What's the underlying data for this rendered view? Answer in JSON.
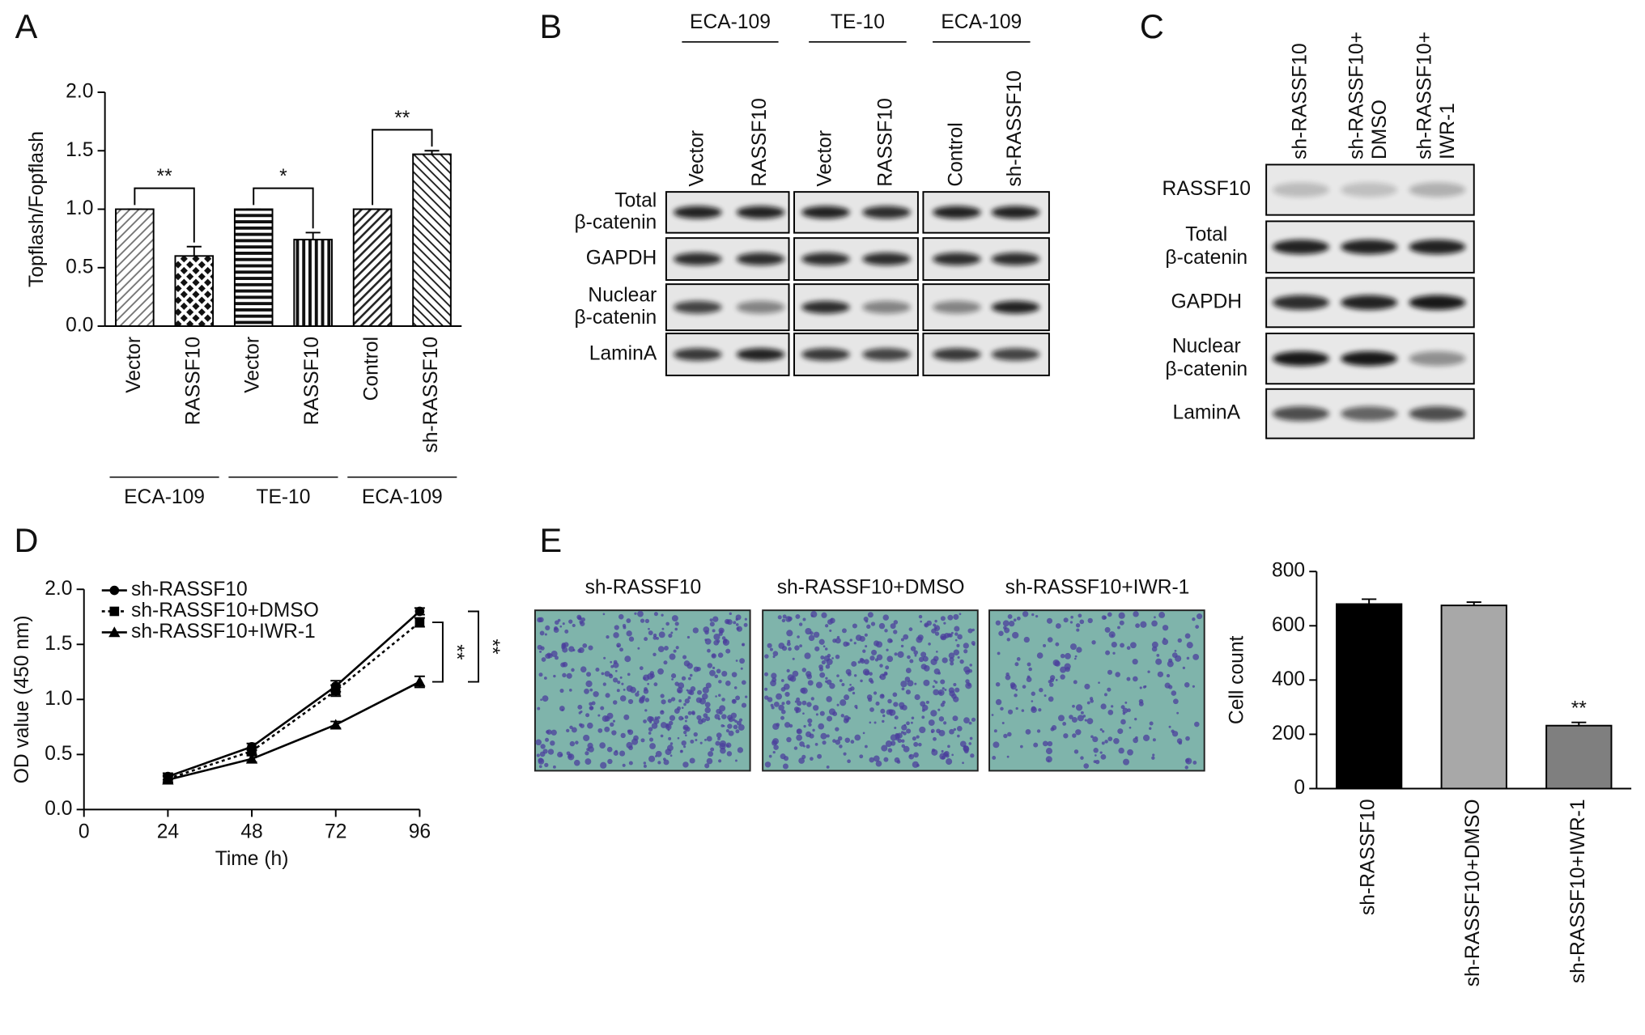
{
  "panel_labels": [
    "A",
    "B",
    "C",
    "D",
    "E"
  ],
  "chart_data": [
    {
      "type": "bar",
      "ylabel": "Topflash/Fopflash",
      "categories": [
        "Vector",
        "RASSF10",
        "Vector",
        "RASSF10",
        "Control",
        "sh-RASSF10"
      ],
      "values": [
        1.0,
        0.6,
        1.0,
        0.74,
        1.0,
        1.47
      ],
      "errors": [
        0,
        0.08,
        0,
        0.06,
        0,
        0.03
      ],
      "groups": [
        "ECA-109",
        "TE-10",
        "ECA-109"
      ],
      "significance": [
        "**",
        "*",
        "**"
      ],
      "ylim": [
        0,
        2
      ],
      "yticks": [
        {
          "value": 0,
          "label": "0.0"
        },
        {
          "value": 0.5,
          "label": "0.5"
        },
        {
          "value": 1,
          "label": "1.0"
        },
        {
          "value": 1.5,
          "label": "1.5"
        },
        {
          "value": 2,
          "label": "2.0"
        }
      ]
    },
    {
      "type": "line",
      "xlabel": "Time (h)",
      "ylabel": "OD value (450 nm)",
      "x": [
        24,
        48,
        72,
        96
      ],
      "xlim": [
        0,
        96
      ],
      "xticks": [
        0,
        24,
        48,
        72,
        96
      ],
      "ylim": [
        0,
        2
      ],
      "yticks": [
        {
          "value": 0,
          "label": "0.0"
        },
        {
          "value": 0.5,
          "label": "0.5"
        },
        {
          "value": 1,
          "label": "1.0"
        },
        {
          "value": 1.5,
          "label": "1.5"
        },
        {
          "value": 2,
          "label": "2.0"
        }
      ],
      "series": [
        {
          "name": "sh-RASSF10",
          "color": "#000000",
          "marker": "circle",
          "dash": "solid",
          "values": [
            0.3,
            0.57,
            1.12,
            1.8
          ],
          "errors": [
            0.03,
            0.03,
            0.05,
            0.03
          ]
        },
        {
          "name": "sh-RASSF10+DMSO",
          "color": "#000000",
          "marker": "square",
          "dash": "dotted",
          "values": [
            0.28,
            0.53,
            1.08,
            1.7
          ],
          "errors": [
            0.03,
            0.03,
            0.05,
            0.04
          ]
        },
        {
          "name": "sh-RASSF10+IWR-1",
          "color": "#000000",
          "marker": "triangle",
          "dash": "solid",
          "values": [
            0.27,
            0.46,
            0.77,
            1.16
          ],
          "errors": [
            0.03,
            0.03,
            0.03,
            0.05
          ]
        }
      ],
      "significance": [
        "**",
        "**"
      ]
    },
    {
      "type": "bar",
      "ylabel": "Cell count",
      "categories": [
        "sh-RASSF10",
        "sh-RASSF10+DMSO",
        "sh-RASSF10+IWR-1"
      ],
      "values": [
        680,
        675,
        232
      ],
      "errors": [
        18,
        12,
        12
      ],
      "colors": [
        "#000000",
        "#a8a8a8",
        "#7f7f7f"
      ],
      "significance": [
        "**"
      ],
      "ylim": [
        0,
        800
      ],
      "yticks": [
        0,
        200,
        400,
        600,
        800
      ]
    }
  ],
  "blot_b": {
    "groups": [
      "ECA-109",
      "TE-10",
      "ECA-109"
    ],
    "lanes": [
      "Vector",
      "RASSF10",
      "Vector",
      "RASSF10",
      "Control",
      "sh-RASSF10"
    ],
    "rows": [
      [
        "Total",
        "β-catenin"
      ],
      [
        "GAPDH"
      ],
      [
        "Nuclear",
        "β-catenin"
      ],
      [
        "LaminA"
      ]
    ]
  },
  "blot_c": {
    "lanes": [
      [
        "sh-RASSF10"
      ],
      [
        "sh-RASSF10+",
        "DMSO"
      ],
      [
        "sh-RASSF10+",
        "IWR-1"
      ]
    ],
    "rows": [
      [
        "RASSF10"
      ],
      [
        "Total",
        "β-catenin"
      ],
      [
        "GAPDH"
      ],
      [
        "Nuclear",
        "β-catenin"
      ],
      [
        "LaminA"
      ]
    ]
  },
  "transwell": {
    "labels": [
      "sh-RASSF10",
      "sh-RASSF10+DMSO",
      "sh-RASSF10+IWR-1"
    ]
  }
}
